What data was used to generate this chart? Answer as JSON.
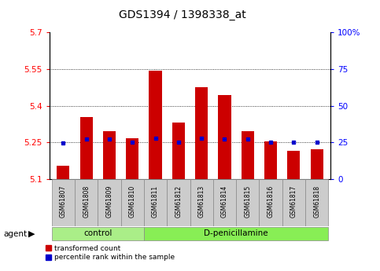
{
  "title": "GDS1394 / 1398338_at",
  "samples": [
    "GSM61807",
    "GSM61808",
    "GSM61809",
    "GSM61810",
    "GSM61811",
    "GSM61812",
    "GSM61813",
    "GSM61814",
    "GSM61815",
    "GSM61816",
    "GSM61817",
    "GSM61818"
  ],
  "red_values": [
    5.155,
    5.355,
    5.295,
    5.265,
    5.545,
    5.33,
    5.475,
    5.445,
    5.295,
    5.255,
    5.215,
    5.22
  ],
  "blue_values": [
    5.248,
    5.262,
    5.262,
    5.252,
    5.268,
    5.252,
    5.268,
    5.262,
    5.262,
    5.252,
    5.252,
    5.252
  ],
  "ylim_left": [
    5.1,
    5.7
  ],
  "ylim_right": [
    0,
    100
  ],
  "yticks_left": [
    5.1,
    5.25,
    5.4,
    5.55,
    5.7
  ],
  "yticks_right": [
    0,
    25,
    50,
    75,
    100
  ],
  "ytick_labels_left": [
    "5.1",
    "5.25",
    "5.4",
    "5.55",
    "5.7"
  ],
  "ytick_labels_right": [
    "0",
    "25",
    "50",
    "75",
    "100%"
  ],
  "grid_lines": [
    5.25,
    5.4,
    5.55
  ],
  "bar_color": "#cc0000",
  "dot_color": "#0000cc",
  "n_control": 4,
  "n_treatment": 8,
  "control_label": "control",
  "treatment_label": "D-penicillamine",
  "group_bg_control": "#aaee88",
  "group_bg_treatment": "#88ee55",
  "tick_bg": "#cccccc",
  "legend_red": "transformed count",
  "legend_blue": "percentile rank within the sample",
  "agent_label": "agent",
  "bar_width": 0.55,
  "figsize": [
    4.83,
    3.45
  ],
  "dpi": 100
}
